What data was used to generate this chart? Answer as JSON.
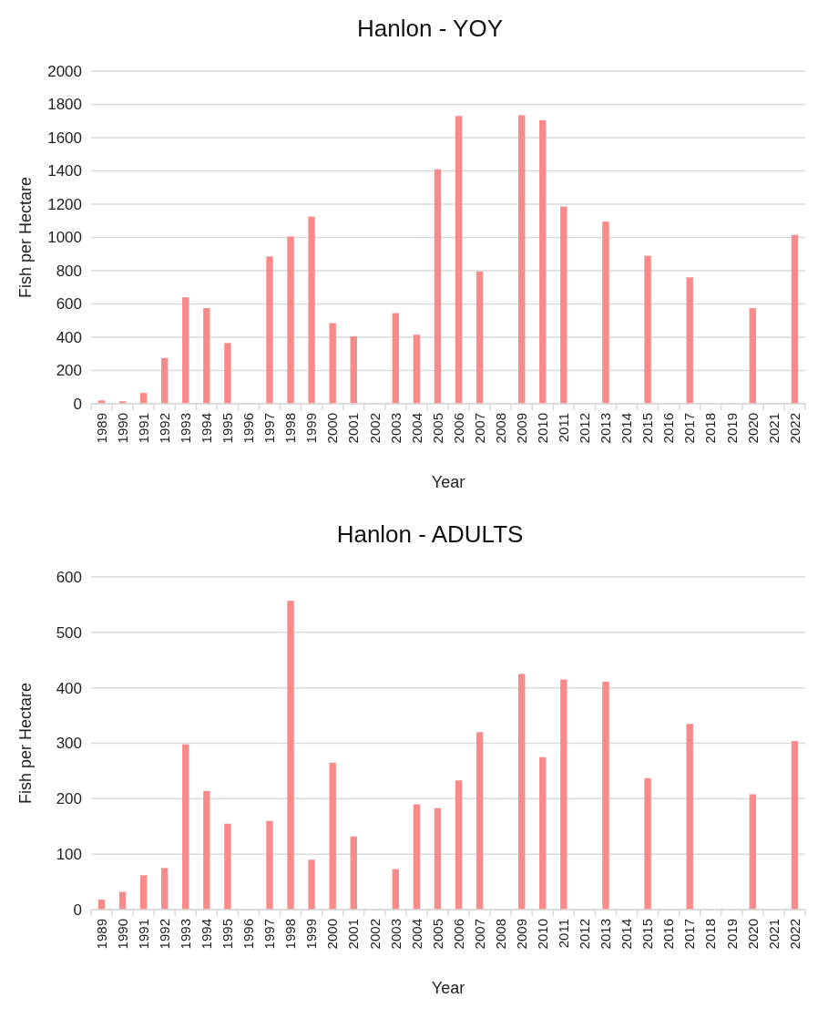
{
  "chart_data": [
    {
      "type": "bar",
      "title": "Hanlon - YOY",
      "xlabel": "Year",
      "ylabel": "Fish per Hectare",
      "categories": [
        "1989",
        "1990",
        "1991",
        "1992",
        "1993",
        "1994",
        "1995",
        "1996",
        "1997",
        "1998",
        "1999",
        "2000",
        "2001",
        "2002",
        "2003",
        "2004",
        "2005",
        "2006",
        "2007",
        "2008",
        "2009",
        "2010",
        "2011",
        "2012",
        "2013",
        "2014",
        "2015",
        "2016",
        "2017",
        "2018",
        "2019",
        "2020",
        "2021",
        "2022"
      ],
      "values": [
        20,
        15,
        65,
        275,
        640,
        575,
        365,
        null,
        885,
        1005,
        1125,
        485,
        405,
        null,
        545,
        415,
        1410,
        1730,
        795,
        null,
        1735,
        1705,
        1185,
        null,
        1095,
        null,
        890,
        null,
        760,
        null,
        null,
        575,
        null,
        1015
      ],
      "color": "#f88a8a",
      "ylim": [
        0,
        2000
      ],
      "yticks": [
        0,
        200,
        400,
        600,
        800,
        1000,
        1200,
        1400,
        1600,
        1800,
        2000
      ],
      "grid": "y"
    },
    {
      "type": "bar",
      "title": "Hanlon - ADULTS",
      "xlabel": "Year",
      "ylabel": "Fish per Hectare",
      "categories": [
        "1989",
        "1990",
        "1991",
        "1992",
        "1993",
        "1994",
        "1995",
        "1996",
        "1997",
        "1998",
        "1999",
        "2000",
        "2001",
        "2002",
        "2003",
        "2004",
        "2005",
        "2006",
        "2007",
        "2008",
        "2009",
        "2010",
        "2011",
        "2012",
        "2013",
        "2014",
        "2015",
        "2016",
        "2017",
        "2018",
        "2019",
        "2020",
        "2021",
        "2022"
      ],
      "values": [
        18,
        32,
        62,
        75,
        298,
        214,
        155,
        null,
        160,
        557,
        90,
        265,
        132,
        null,
        73,
        190,
        183,
        233,
        320,
        null,
        425,
        275,
        415,
        null,
        411,
        null,
        237,
        null,
        335,
        null,
        null,
        208,
        null,
        304
      ],
      "color": "#f88a8a",
      "ylim": [
        0,
        600
      ],
      "yticks": [
        0,
        100,
        200,
        300,
        400,
        500,
        600
      ],
      "grid": "y"
    }
  ]
}
